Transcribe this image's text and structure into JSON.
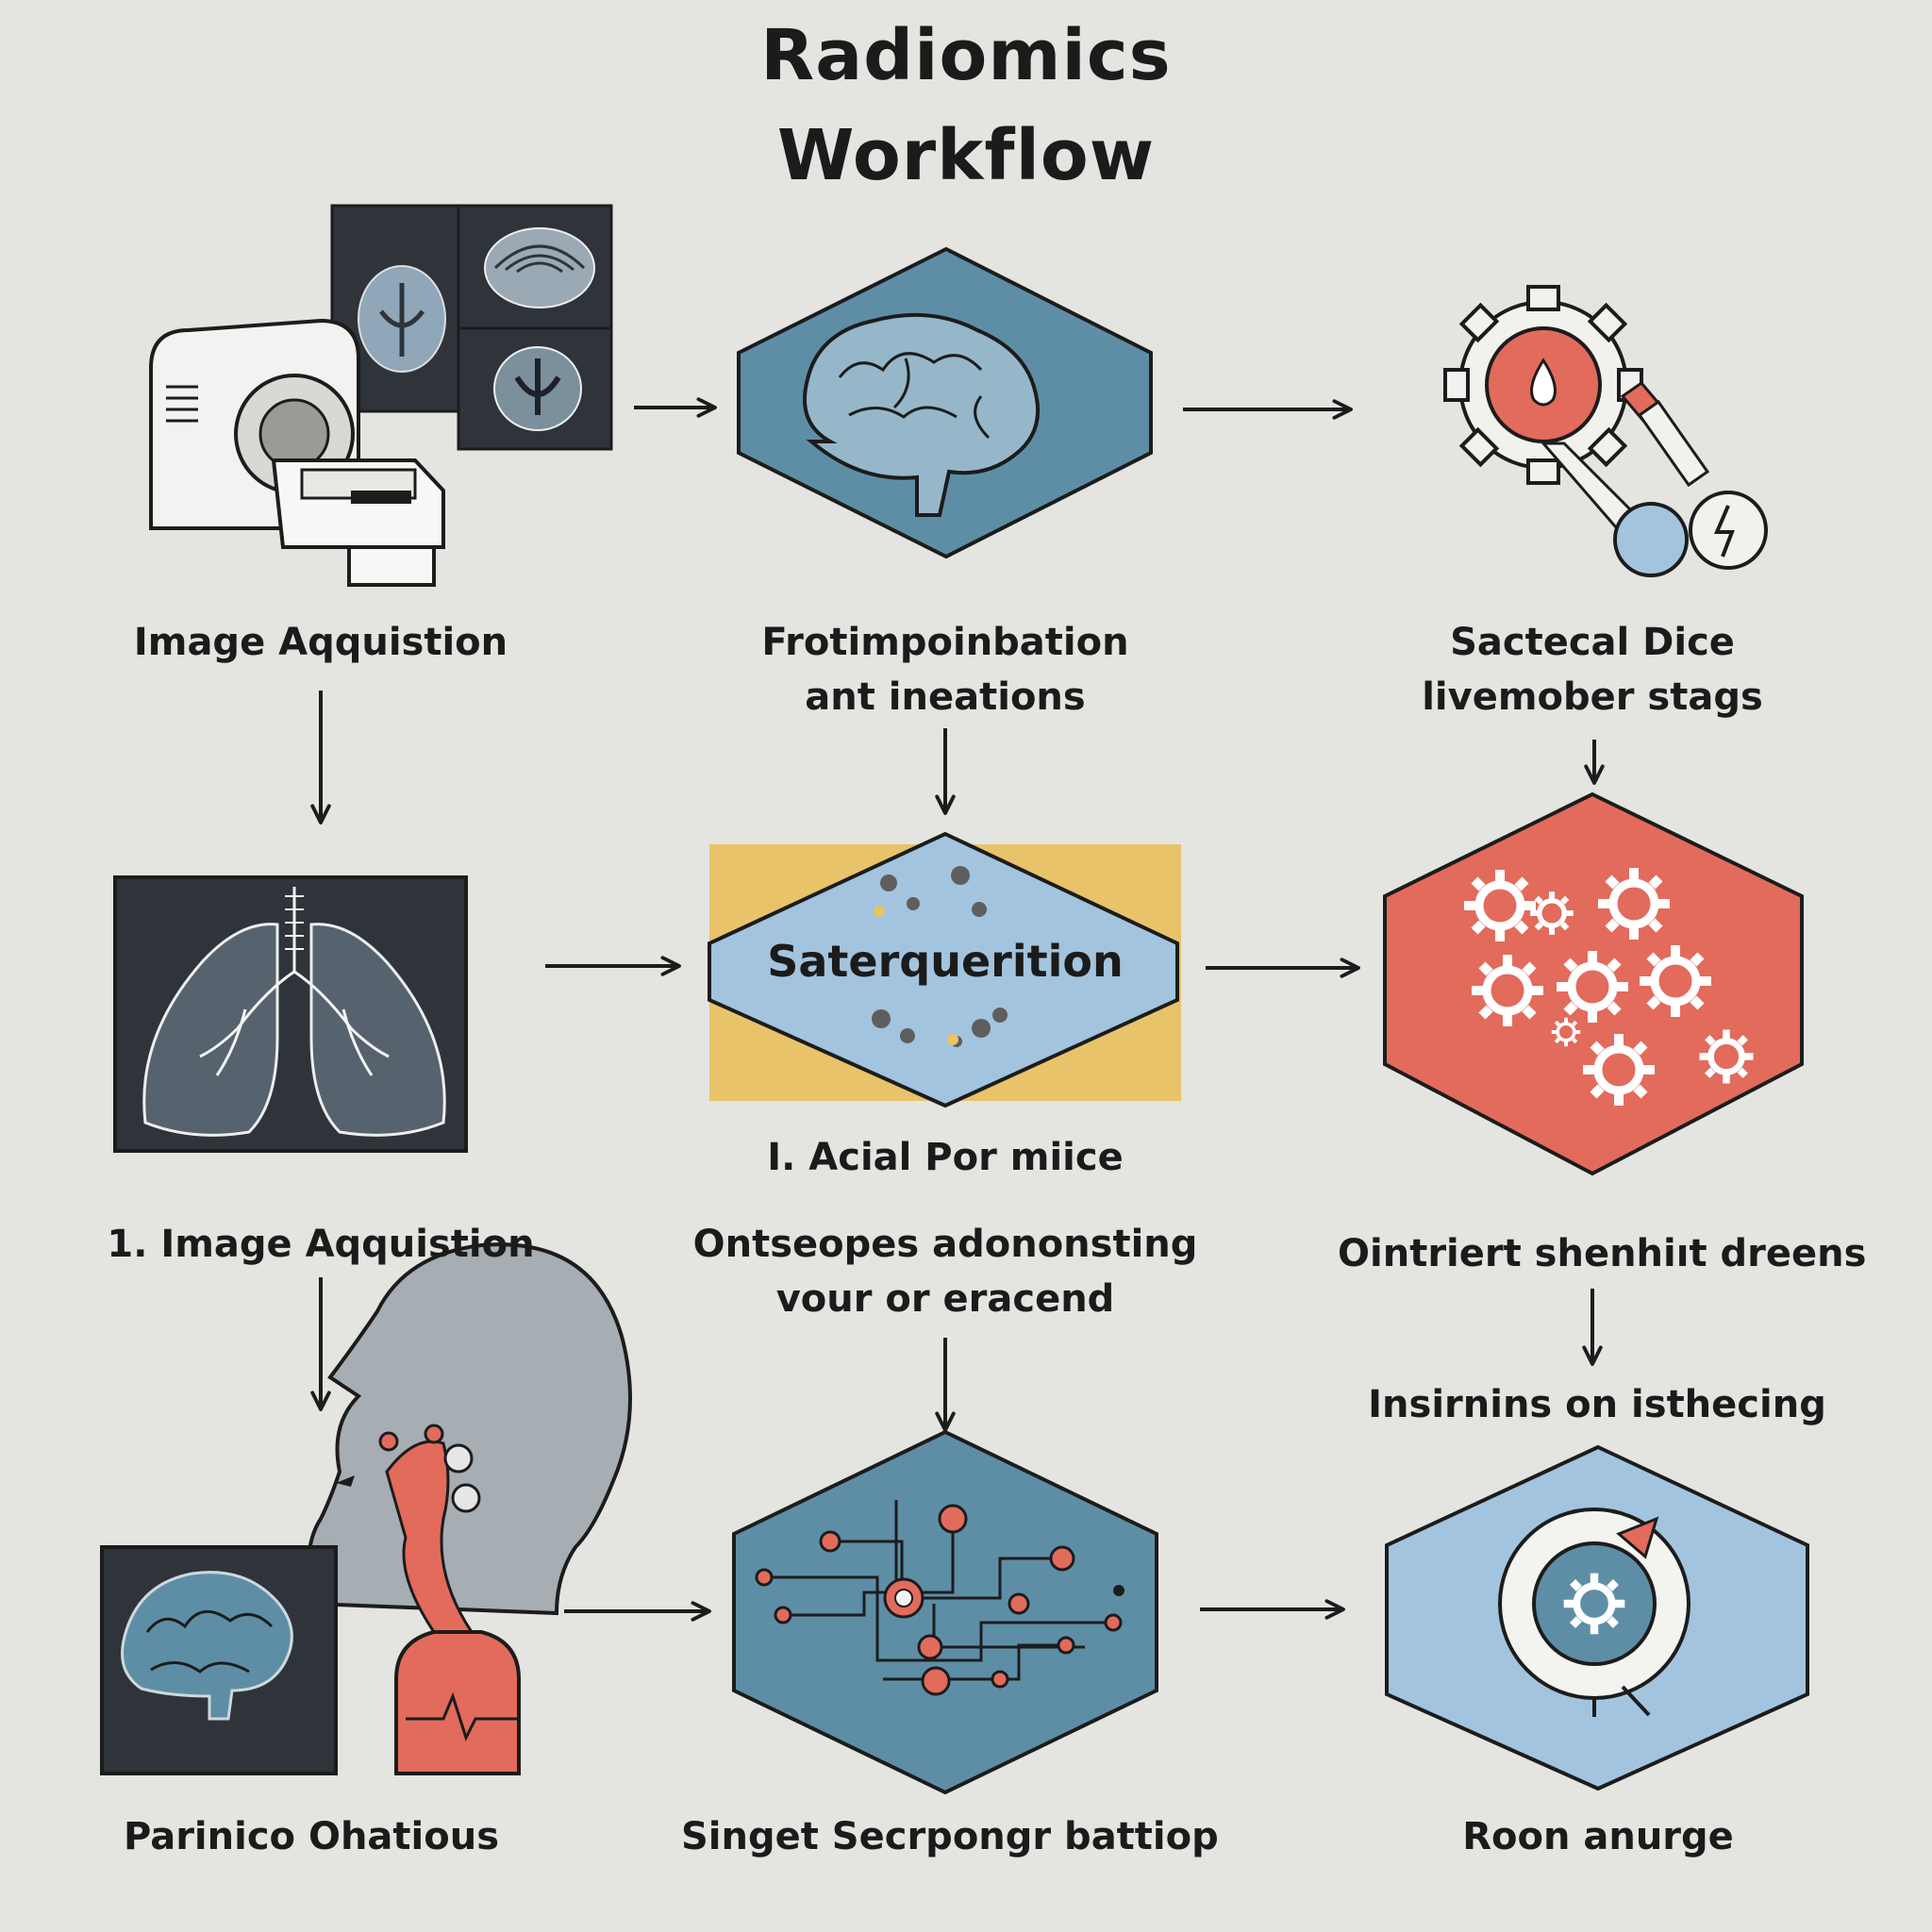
{
  "title": {
    "line1": "Radiomics",
    "line2": "Workflow"
  },
  "labels": {
    "image_acquisition": "Image Aqquistion",
    "frotimpoinbation": [
      "Frotimpoinbation",
      "ant ineations"
    ],
    "sactecal_dice": [
      "Sactecal Dice",
      "livemober stags"
    ],
    "saterquerition": "Saterquerition",
    "acial_pormiice": "I. Acial Por miice",
    "image_acquisition_numbered": "1. Image Aqquistion",
    "ontseopes": [
      "Ontseopes adononsting",
      "vour or eracend"
    ],
    "ointriert": "Ointriert shenhiıt dreens",
    "insirnins": "Insirnins on isthecing",
    "parinico": "Parinico Ohatious",
    "singet": "Singet Secrpongr battiop",
    "roon": "Roon anurge"
  },
  "colors": {
    "background": "#e4e4e0",
    "hex_blue_dark": "#5e8ea6",
    "hex_blue_light": "#a3c4de",
    "hex_red": "#e26b5c",
    "yellow_band": "#e8c36a",
    "dark_panel": "#2f343b",
    "stroke": "#1c1c1c"
  },
  "icons": [
    "mri-scanner-icon",
    "brain-scan-icon",
    "gear-settings-icon",
    "lungs-xray-icon",
    "gears-cluster-icon",
    "head-profile-icon",
    "circuit-network-icon",
    "target-gear-icon"
  ]
}
